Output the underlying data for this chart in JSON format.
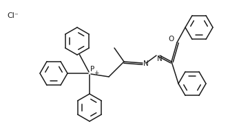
{
  "bg_color": "#ffffff",
  "line_color": "#1a1a1a",
  "line_width": 1.1,
  "font_size": 7.5,
  "cl_label": "Cl⁻",
  "p_label": "P",
  "p_charge": "+",
  "n_label": "N",
  "o_label": "O"
}
